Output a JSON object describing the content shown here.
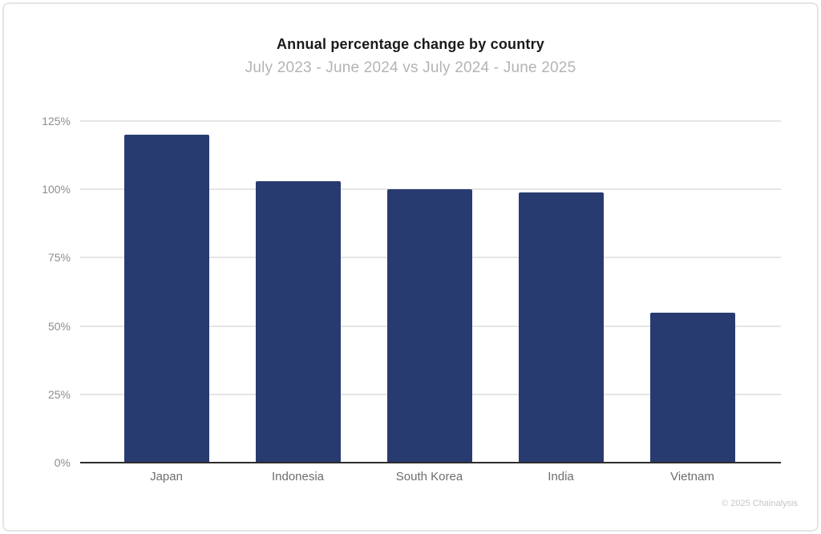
{
  "header": {
    "title": "Annual percentage change by country",
    "subtitle": "July 2023 - June 2024 vs July 2024 - June 2025"
  },
  "footer": {
    "credit": "© 2025 Chainalysis"
  },
  "colors": {
    "bar": "#283B70",
    "gridline": "#e5e5e5",
    "axis_line": "#2d2d2d",
    "ytick_text": "#8d8d8d",
    "xtick_text": "#6e6e6e",
    "title_text": "#1a1a1a",
    "subtitle_text": "#b4b4b4"
  },
  "chart_data": {
    "type": "bar",
    "title": "Annual percentage change by country",
    "subtitle": "July 2023 - June 2024 vs July 2024 - June 2025",
    "categories": [
      "Japan",
      "Indonesia",
      "South Korea",
      "India",
      "Vietnam"
    ],
    "values": [
      120,
      103,
      100,
      99,
      55
    ],
    "unit": "%",
    "xlabel": "",
    "ylabel": "",
    "ylim": [
      0,
      125
    ],
    "yticks": [
      0,
      25,
      50,
      75,
      100,
      125
    ],
    "ytick_labels": [
      "0%",
      "25%",
      "50%",
      "75%",
      "100%",
      "125%"
    ],
    "grid": true,
    "legend": false,
    "bar_color": "#283B70"
  }
}
